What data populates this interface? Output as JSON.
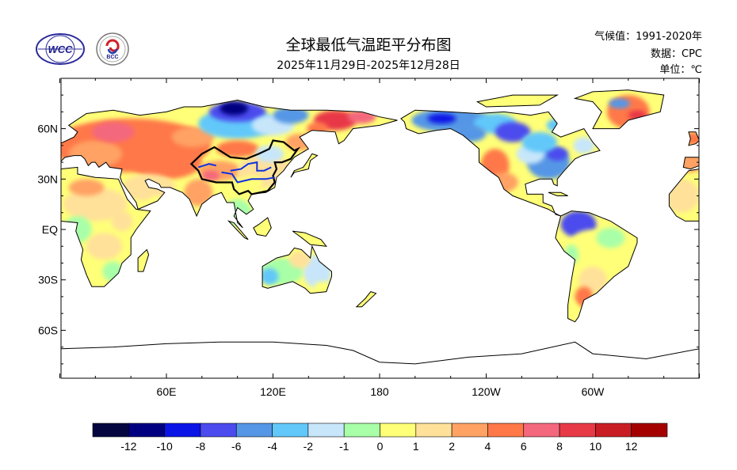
{
  "header": {
    "title": "全球最低气温距平分布图",
    "subtitle": "2025年11月29日-2025年12月28日",
    "climatology": "气候值：1991-2020年",
    "data_source": "数据：CPC",
    "unit": "单位：℃"
  },
  "logos": {
    "wcc": "WCC",
    "bcc": "BCC"
  },
  "axes": {
    "lat_labels": [
      "60N",
      "30N",
      "EQ",
      "30S",
      "60S"
    ],
    "lat_values": [
      60,
      30,
      0,
      -30,
      -60
    ],
    "lon_labels": [
      "60E",
      "120E",
      "180",
      "120W",
      "60W"
    ],
    "lon_values": [
      60,
      120,
      180,
      240,
      300
    ]
  },
  "colorbar": {
    "labels": [
      "-12",
      "-10",
      "-8",
      "-6",
      "-4",
      "-2",
      "-1",
      "0",
      "1",
      "2",
      "4",
      "6",
      "8",
      "10",
      "12"
    ],
    "colors": [
      "#050540",
      "#000080",
      "#0a14e6",
      "#4b4bee",
      "#5596e6",
      "#62c8fa",
      "#c8e6fa",
      "#a8ffa8",
      "#ffff78",
      "#ffe19a",
      "#ffa264",
      "#ff7848",
      "#f4687d",
      "#e83947",
      "#c81e23",
      "#a50000"
    ]
  }
}
